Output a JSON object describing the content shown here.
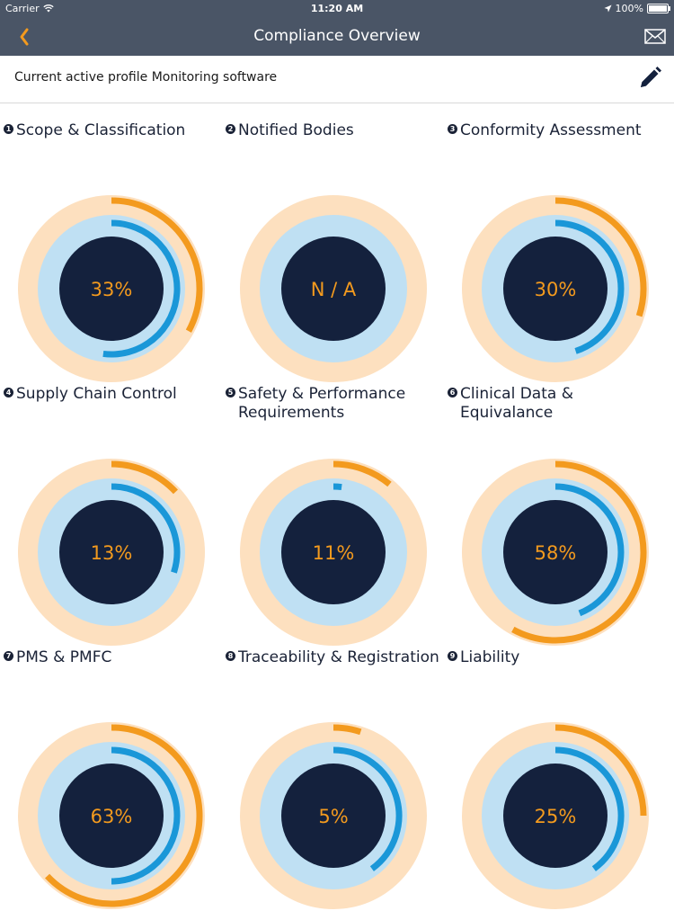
{
  "status_bar": {
    "carrier": "Carrier",
    "time": "11:20 AM",
    "battery": "100%"
  },
  "nav": {
    "title": "Compliance Overview"
  },
  "profile": {
    "label": "Current active profile Monitoring software"
  },
  "colors": {
    "nav_bg": "#4a5566",
    "accent_orange": "#f39a1e",
    "ring_peach": "#fde0bf",
    "ring_lightblue": "#bfe0f3",
    "progress_blue": "#1a97d8",
    "center_navy": "#14213d"
  },
  "categories": [
    {
      "number": "1",
      "title": "Scope & Classification",
      "label": "33%",
      "outer": 0.33,
      "inner": 0.52
    },
    {
      "number": "2",
      "title": "Notified Bodies",
      "label": "N / A",
      "outer": 0,
      "inner": 0
    },
    {
      "number": "3",
      "title": "Conformity Assessment",
      "label": "30%",
      "outer": 0.3,
      "inner": 0.45
    },
    {
      "number": "4",
      "title": "Supply Chain Control",
      "label": "13%",
      "outer": 0.13,
      "inner": 0.3
    },
    {
      "number": "5",
      "title": "Safety & Performance Requirements",
      "label": "11%",
      "outer": 0.11,
      "inner": 0.02
    },
    {
      "number": "6",
      "title": "Clinical Data & Equivalance",
      "label": "58%",
      "outer": 0.58,
      "inner": 0.44
    },
    {
      "number": "7",
      "title": "PMS & PMFC",
      "label": "63%",
      "outer": 0.63,
      "inner": 0.5
    },
    {
      "number": "8",
      "title": "Traceability & Registration",
      "label": "5%",
      "outer": 0.05,
      "inner": 0.4
    },
    {
      "number": "9",
      "title": "Liability",
      "label": "25%",
      "outer": 0.25,
      "inner": 0.4
    }
  ]
}
